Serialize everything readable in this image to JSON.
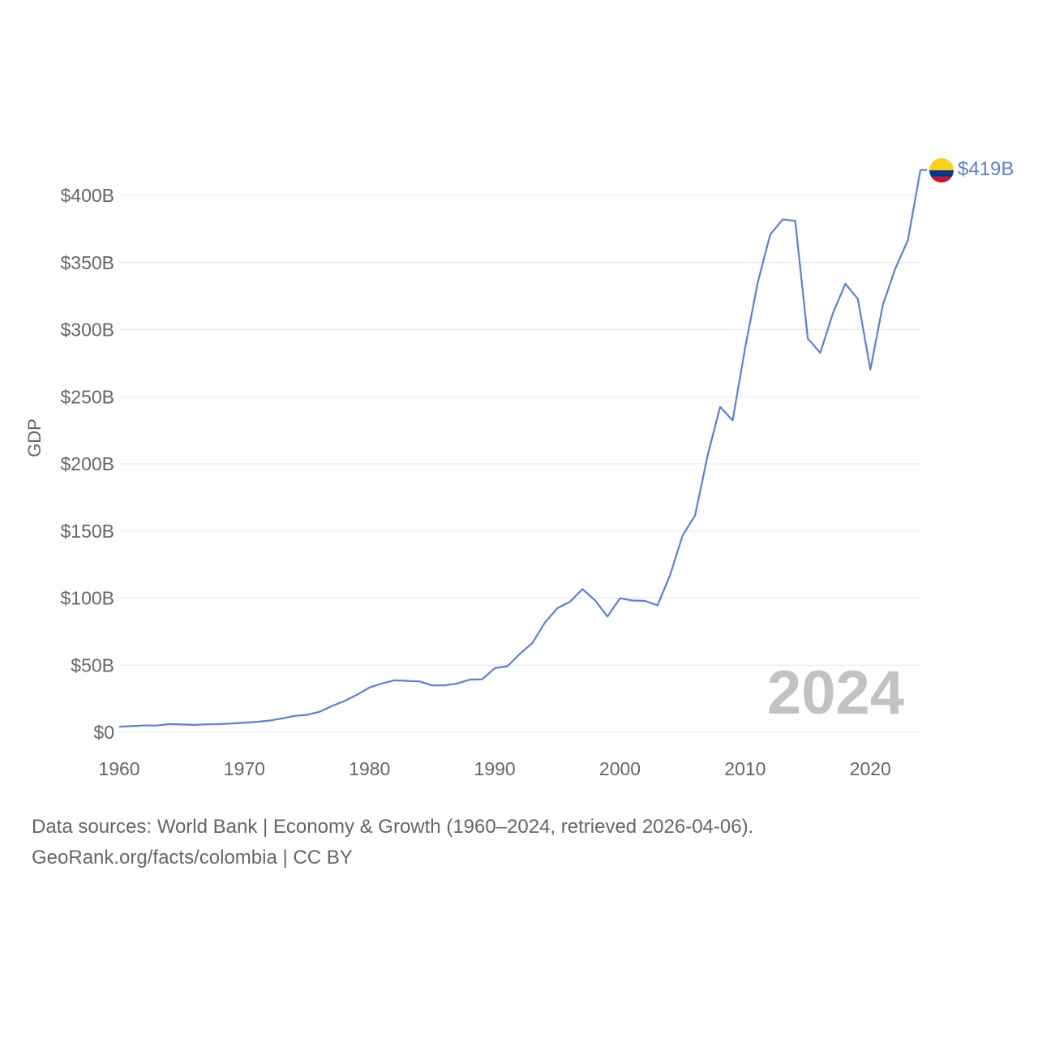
{
  "chart_data": {
    "type": "line",
    "title": "",
    "xlabel": "",
    "ylabel": "GDP",
    "x_ticks": [
      "1960",
      "1970",
      "1980",
      "1990",
      "2000",
      "2010",
      "2020"
    ],
    "y_ticks": [
      "$0",
      "$50B",
      "$100B",
      "$150B",
      "$200B",
      "$250B",
      "$300B",
      "$350B",
      "$400B"
    ],
    "y_tick_values": [
      0,
      50,
      100,
      150,
      200,
      250,
      300,
      350,
      400
    ],
    "xlim": [
      1960,
      2024
    ],
    "ylim": [
      0,
      400
    ],
    "y_unit": "billion USD",
    "grid": true,
    "series": [
      {
        "name": "Colombia",
        "color": "#5b7fe1",
        "x": [
          1960,
          1961,
          1962,
          1963,
          1964,
          1965,
          1966,
          1967,
          1968,
          1969,
          1970,
          1971,
          1972,
          1973,
          1974,
          1975,
          1976,
          1977,
          1978,
          1979,
          1980,
          1981,
          1982,
          1983,
          1984,
          1985,
          1986,
          1987,
          1988,
          1989,
          1990,
          1991,
          1992,
          1993,
          1994,
          1995,
          1996,
          1997,
          1998,
          1999,
          2000,
          2001,
          2002,
          2003,
          2004,
          2005,
          2006,
          2007,
          2008,
          2009,
          2010,
          2011,
          2012,
          2013,
          2014,
          2015,
          2016,
          2017,
          2018,
          2019,
          2020,
          2021,
          2022,
          2023,
          2024
        ],
        "values": [
          4.1,
          4.6,
          5.1,
          5.0,
          6.1,
          5.8,
          5.5,
          5.9,
          6.1,
          6.6,
          7.2,
          7.8,
          8.7,
          10.3,
          12.2,
          13.0,
          15.3,
          19.6,
          23.3,
          28.0,
          33.4,
          36.4,
          38.8,
          38.3,
          37.9,
          34.9,
          34.9,
          36.4,
          39.2,
          39.5,
          47.8,
          49.2,
          58.4,
          66.4,
          81.7,
          92.5,
          97.2,
          106.7,
          98.4,
          86.2,
          99.9,
          98.2,
          97.9,
          94.6,
          117.1,
          146.6,
          161.6,
          206.2,
          242.5,
          232.4,
          286.5,
          334.9,
          370.9,
          382.1,
          381.1,
          293.5,
          282.7,
          311.9,
          334.2,
          323.0,
          270.3,
          318.5,
          345.7,
          366.7,
          419.0
        ]
      }
    ],
    "end_label": "$419B",
    "current_year_label": "2024"
  },
  "legend": {
    "flag_icon": "colombia-flag-icon",
    "flag_colors": [
      "#fcd116",
      "#003893",
      "#ce1126"
    ]
  },
  "footer": {
    "sources": "Data sources: World Bank | Economy & Growth (1960–2024, retrieved 2026-04-06).",
    "attribution": "GeoRank.org/facts/colombia | CC BY"
  }
}
